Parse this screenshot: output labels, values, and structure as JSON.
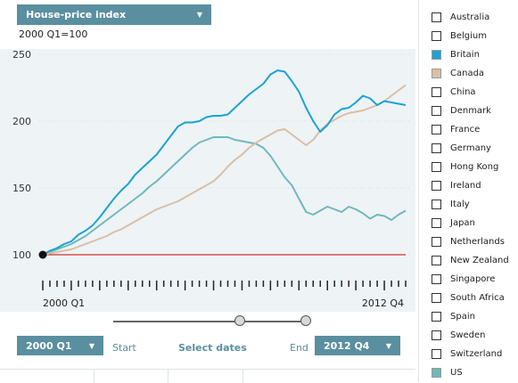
{
  "header": {
    "indicator": "House-price index",
    "subtitle": "2000 Q1=100"
  },
  "controls": {
    "start_value": "2000 Q1",
    "start_label": "Start",
    "select_dates": "Select dates",
    "end_label": "End",
    "end_value": "2012 Q4"
  },
  "legend": [
    {
      "label": "Australia",
      "checked": false,
      "color": "#ffffff"
    },
    {
      "label": "Belgium",
      "checked": false,
      "color": "#ffffff"
    },
    {
      "label": "Britain",
      "checked": true,
      "color": "#1ba3d3"
    },
    {
      "label": "Canada",
      "checked": true,
      "color": "#d9bfa5"
    },
    {
      "label": "China",
      "checked": false,
      "color": "#ffffff"
    },
    {
      "label": "Denmark",
      "checked": false,
      "color": "#ffffff"
    },
    {
      "label": "France",
      "checked": false,
      "color": "#ffffff"
    },
    {
      "label": "Germany",
      "checked": false,
      "color": "#ffffff"
    },
    {
      "label": "Hong Kong",
      "checked": false,
      "color": "#ffffff"
    },
    {
      "label": "Ireland",
      "checked": false,
      "color": "#ffffff"
    },
    {
      "label": "Italy",
      "checked": false,
      "color": "#ffffff"
    },
    {
      "label": "Japan",
      "checked": false,
      "color": "#ffffff"
    },
    {
      "label": "Netherlands",
      "checked": false,
      "color": "#ffffff"
    },
    {
      "label": "New Zealand",
      "checked": false,
      "color": "#ffffff"
    },
    {
      "label": "Singapore",
      "checked": false,
      "color": "#ffffff"
    },
    {
      "label": "South Africa",
      "checked": false,
      "color": "#ffffff"
    },
    {
      "label": "Spain",
      "checked": false,
      "color": "#ffffff"
    },
    {
      "label": "Sweden",
      "checked": false,
      "color": "#ffffff"
    },
    {
      "label": "Switzerland",
      "checked": false,
      "color": "#ffffff"
    },
    {
      "label": "US",
      "checked": true,
      "color": "#6fb8bb"
    }
  ],
  "chart_data": {
    "type": "line",
    "x_start_label": "2000 Q1",
    "x_end_label": "2012 Q4",
    "quarters": 52,
    "yticks": [
      50,
      100,
      150,
      200,
      250,
      300,
      350,
      400,
      450
    ],
    "ylim": [
      50,
      460
    ],
    "baseline": 100,
    "baseline_color": "#cc0000",
    "series": [
      {
        "name": "Britain",
        "color": "#1ba3d3",
        "values": [
          100,
          103,
          105,
          108,
          110,
          115,
          118,
          122,
          128,
          135,
          142,
          148,
          153,
          160,
          165,
          170,
          175,
          182,
          189,
          196,
          199,
          199,
          200,
          203,
          204,
          204,
          205,
          210,
          215,
          220,
          224,
          228,
          235,
          238,
          237,
          230,
          222,
          210,
          200,
          192,
          197,
          205,
          209,
          210,
          214,
          219,
          217,
          212,
          215,
          214,
          213,
          212
        ]
      },
      {
        "name": "Canada",
        "color": "#d9bfa5",
        "values": [
          100,
          101,
          102,
          103,
          104,
          106,
          108,
          110,
          112,
          114,
          117,
          119,
          122,
          125,
          128,
          131,
          134,
          136,
          138,
          140,
          143,
          146,
          149,
          152,
          155,
          160,
          166,
          171,
          175,
          180,
          184,
          187,
          190,
          193,
          194,
          190,
          186,
          182,
          186,
          193,
          198,
          201,
          204,
          206,
          207,
          208,
          210,
          212,
          215,
          219,
          223,
          227
        ]
      },
      {
        "name": "US",
        "color": "#6fb8bb",
        "values": [
          100,
          102,
          104,
          106,
          108,
          111,
          114,
          118,
          122,
          126,
          130,
          134,
          138,
          142,
          146,
          151,
          155,
          160,
          165,
          170,
          175,
          180,
          184,
          186,
          188,
          188,
          188,
          186,
          185,
          184,
          183,
          180,
          174,
          166,
          158,
          152,
          142,
          132,
          130,
          133,
          136,
          134,
          132,
          136,
          134,
          131,
          127,
          130,
          129,
          126,
          130,
          133
        ]
      }
    ]
  }
}
